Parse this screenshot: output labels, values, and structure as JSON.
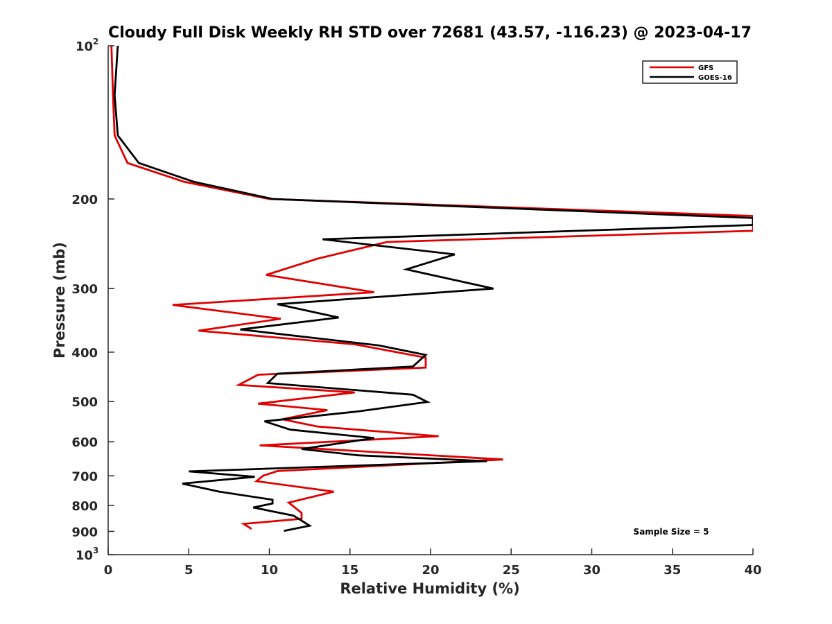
{
  "chart_data": {
    "type": "line",
    "title": "Cloudy Full Disk Weekly RH STD over 72681 (43.57, -116.23) @ 2023-04-17",
    "xlabel": "Relative Humidity (%)",
    "ylabel": "Pressure (mb)",
    "xlim": [
      0,
      40
    ],
    "ylim": [
      100,
      1000
    ],
    "yscale": "log",
    "y_reversed": true,
    "grid": false,
    "legend_position": "top-right",
    "x_ticks": [
      "0",
      "5",
      "10",
      "15",
      "20",
      "25",
      "30",
      "35",
      "40"
    ],
    "y_ticks": [
      {
        "value": 100,
        "base": "10",
        "exp": "2"
      },
      {
        "value": 200,
        "label": "200"
      },
      {
        "value": 300,
        "label": "300"
      },
      {
        "value": 400,
        "label": "400"
      },
      {
        "value": 500,
        "label": "500"
      },
      {
        "value": 600,
        "label": "600"
      },
      {
        "value": 700,
        "label": "700"
      },
      {
        "value": 800,
        "label": "800"
      },
      {
        "value": 900,
        "label": "900"
      },
      {
        "value": 1000,
        "base": "10",
        "exp": "3"
      }
    ],
    "annotation": "Sample Size = 5",
    "series": [
      {
        "name": "GFS",
        "color": "#e00000",
        "points": [
          [
            0.2,
            100
          ],
          [
            0.3,
            125
          ],
          [
            0.4,
            150
          ],
          [
            1.2,
            170
          ],
          [
            4.7,
            185
          ],
          [
            10,
            200
          ],
          [
            40,
            216
          ],
          [
            40,
            231
          ],
          [
            17.3,
            243
          ],
          [
            13,
            262
          ],
          [
            9.8,
            282
          ],
          [
            16.5,
            305
          ],
          [
            4,
            323
          ],
          [
            10.7,
            344
          ],
          [
            5.6,
            363
          ],
          [
            15.3,
            386
          ],
          [
            19.7,
            410
          ],
          [
            19.7,
            429
          ],
          [
            9.3,
            443
          ],
          [
            8.1,
            464
          ],
          [
            15.3,
            480
          ],
          [
            9.3,
            505
          ],
          [
            13.6,
            520
          ],
          [
            10.8,
            542
          ],
          [
            13,
            560
          ],
          [
            20.5,
            585
          ],
          [
            9.4,
            610
          ],
          [
            24.5,
            650
          ],
          [
            10.5,
            685
          ],
          [
            9.6,
            700
          ],
          [
            9.2,
            717
          ],
          [
            14,
            752
          ],
          [
            11.2,
            790
          ],
          [
            12,
            828
          ],
          [
            12,
            850
          ],
          [
            8.4,
            870
          ],
          [
            8.9,
            890
          ]
        ]
      },
      {
        "name": "GOES-16",
        "color": "#000000",
        "points": [
          [
            0.6,
            100
          ],
          [
            0.4,
            125
          ],
          [
            0.6,
            150
          ],
          [
            1.9,
            170
          ],
          [
            5.3,
            185
          ],
          [
            10.2,
            200
          ],
          [
            40,
            218
          ],
          [
            40,
            225
          ],
          [
            13.3,
            240
          ],
          [
            21.5,
            257
          ],
          [
            18.5,
            275
          ],
          [
            23.9,
            300
          ],
          [
            10.5,
            322
          ],
          [
            14.3,
            342
          ],
          [
            8.2,
            361
          ],
          [
            16.8,
            388
          ],
          [
            19.7,
            405
          ],
          [
            18.9,
            427
          ],
          [
            10.5,
            441
          ],
          [
            9.9,
            460
          ],
          [
            18.9,
            485
          ],
          [
            19.8,
            501
          ],
          [
            15.5,
            523
          ],
          [
            9.7,
            547
          ],
          [
            11.3,
            568
          ],
          [
            16.5,
            590
          ],
          [
            12,
            620
          ],
          [
            15.5,
            638
          ],
          [
            23.5,
            655
          ],
          [
            5,
            686
          ],
          [
            9.1,
            703
          ],
          [
            4.6,
            725
          ],
          [
            6.9,
            752
          ],
          [
            10.2,
            780
          ],
          [
            10.2,
            793
          ],
          [
            9,
            808
          ],
          [
            11.5,
            838
          ],
          [
            12.5,
            877
          ],
          [
            10.9,
            898
          ]
        ]
      }
    ]
  }
}
